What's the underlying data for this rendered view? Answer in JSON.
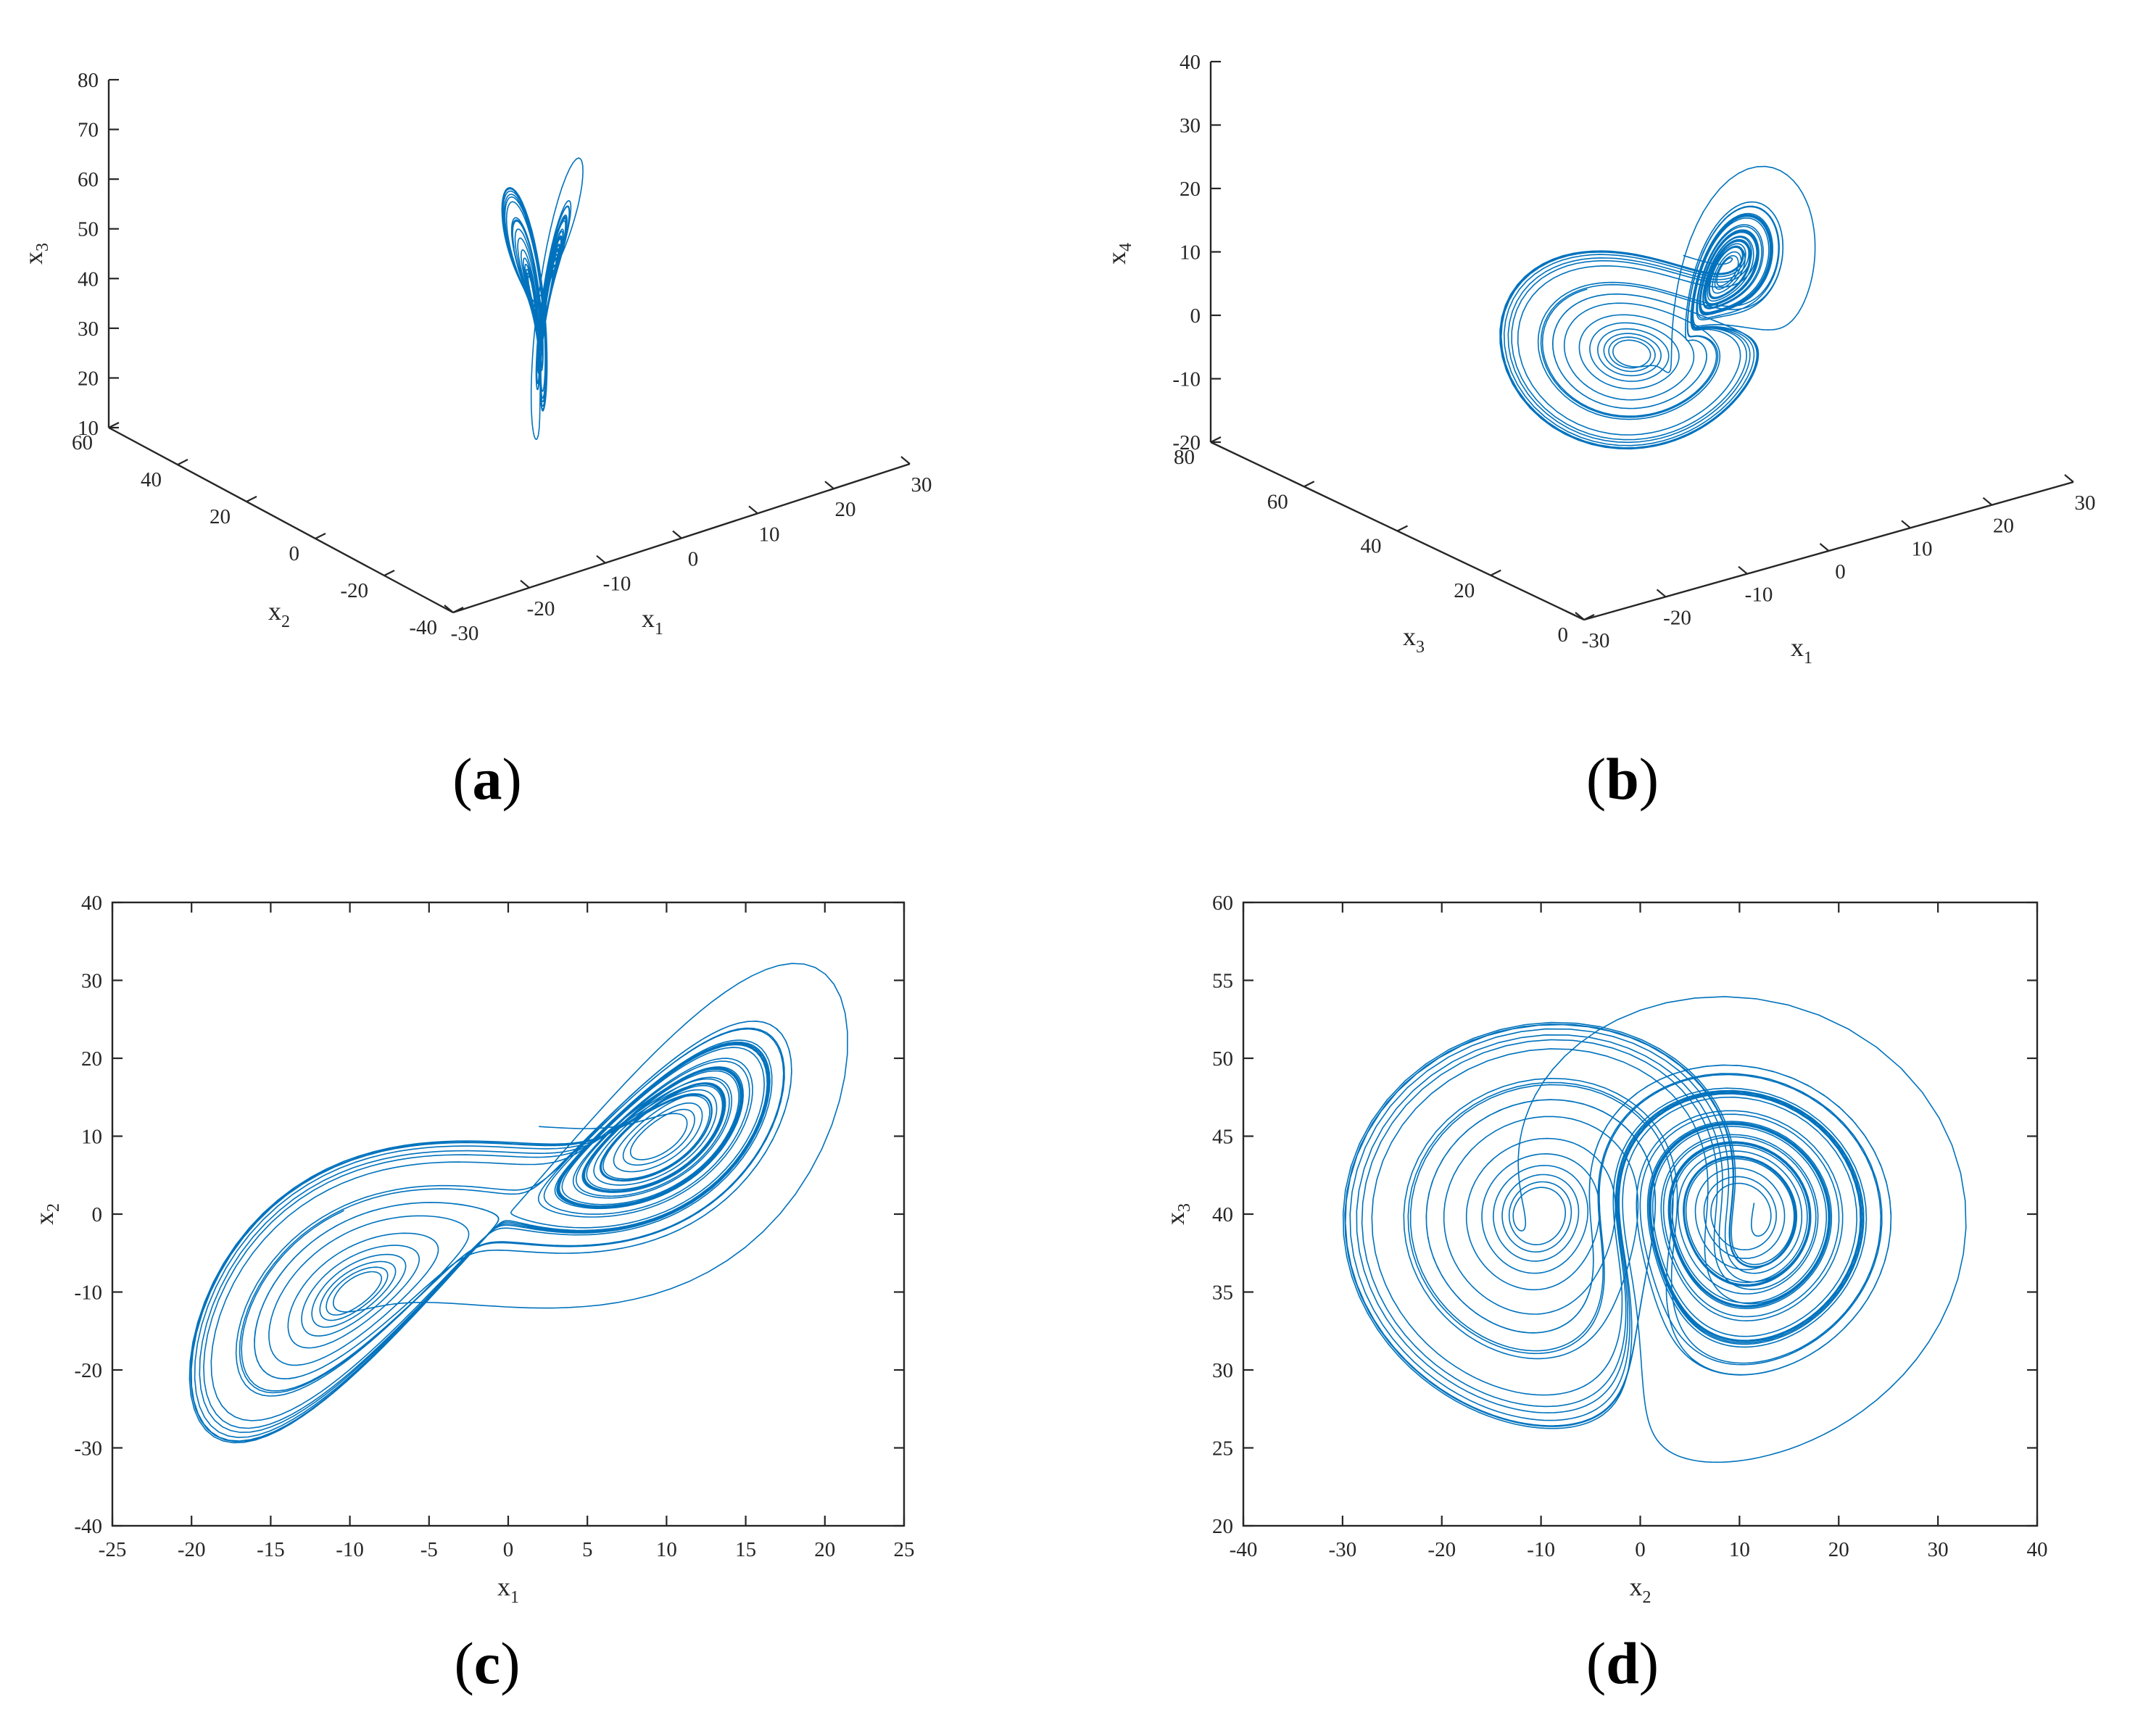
{
  "colors": {
    "series": "#0072BD",
    "axis": "#262626",
    "text": "#262626"
  },
  "chart_data": [
    {
      "id": "a",
      "type": "line",
      "projection": "3d",
      "panel_label": "a",
      "xlabel": {
        "base": "x",
        "sub": "1"
      },
      "ylabel": {
        "base": "x",
        "sub": "2"
      },
      "zlabel": {
        "base": "x",
        "sub": "3"
      },
      "x_ticks": [
        "-30",
        "-20",
        "-10",
        "0",
        "10",
        "20",
        "30"
      ],
      "y_ticks": [
        "-40",
        "-20",
        "0",
        "20",
        "40",
        "60"
      ],
      "z_ticks": [
        "10",
        "20",
        "30",
        "40",
        "50",
        "60",
        "70",
        "80"
      ],
      "xlim": [
        -30,
        30
      ],
      "ylim": [
        -40,
        60
      ],
      "zlim": [
        10,
        80
      ],
      "series": [
        {
          "variables": [
            "x1",
            "x2",
            "x3"
          ]
        }
      ]
    },
    {
      "id": "b",
      "type": "line",
      "projection": "3d",
      "panel_label": "b",
      "xlabel": {
        "base": "x",
        "sub": "1"
      },
      "ylabel": {
        "base": "x",
        "sub": "3"
      },
      "zlabel": {
        "base": "x",
        "sub": "4"
      },
      "x_ticks": [
        "-30",
        "-20",
        "-10",
        "0",
        "10",
        "20",
        "30"
      ],
      "y_ticks": [
        "0",
        "20",
        "40",
        "60",
        "80"
      ],
      "z_ticks": [
        "-20",
        "-10",
        "0",
        "10",
        "20",
        "30",
        "40"
      ],
      "xlim": [
        -30,
        30
      ],
      "ylim": [
        0,
        80
      ],
      "zlim": [
        -20,
        40
      ],
      "series": [
        {
          "variables": [
            "x1",
            "x3",
            "x4"
          ]
        }
      ]
    },
    {
      "id": "c",
      "type": "line",
      "projection": "2d",
      "panel_label": "c",
      "xlabel": {
        "base": "x",
        "sub": "1"
      },
      "ylabel": {
        "base": "x",
        "sub": "2"
      },
      "x_ticks": [
        "-25",
        "-20",
        "-15",
        "-10",
        "-5",
        "0",
        "5",
        "10",
        "15",
        "20",
        "25"
      ],
      "y_ticks": [
        "-40",
        "-30",
        "-20",
        "-10",
        "0",
        "10",
        "20",
        "30",
        "40"
      ],
      "xlim": [
        -25,
        25
      ],
      "ylim": [
        -40,
        40
      ],
      "series": [
        {
          "variables": [
            "x1",
            "x2"
          ]
        }
      ]
    },
    {
      "id": "d",
      "type": "line",
      "projection": "2d",
      "panel_label": "d",
      "xlabel": {
        "base": "x",
        "sub": "2"
      },
      "ylabel": {
        "base": "x",
        "sub": "3"
      },
      "x_ticks": [
        "-40",
        "-30",
        "-20",
        "-10",
        "0",
        "10",
        "20",
        "30",
        "40"
      ],
      "y_ticks": [
        "20",
        "25",
        "30",
        "35",
        "40",
        "45",
        "50",
        "55",
        "60"
      ],
      "xlim": [
        -40,
        40
      ],
      "ylim": [
        20,
        60
      ],
      "series": [
        {
          "variables": [
            "x2",
            "x3"
          ]
        }
      ]
    }
  ]
}
